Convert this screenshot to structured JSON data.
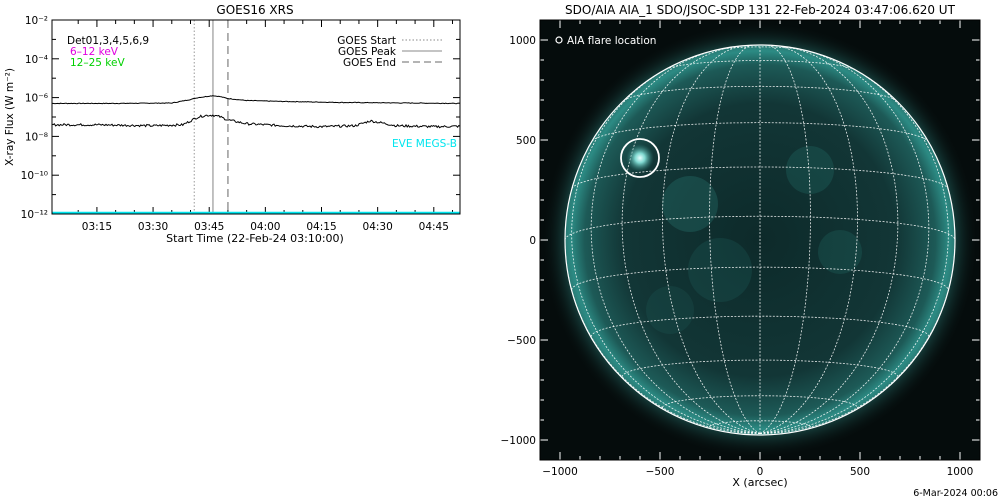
{
  "chart_data": [
    {
      "type": "line",
      "title": "GOES16 XRS",
      "ylabel": "X-ray Flux (W m⁻²)",
      "xlabel": "Start Time (22-Feb-24 03:10:00)",
      "yscale": "log",
      "ylim": [
        1e-12,
        0.01
      ],
      "y_tick_labels": [
        "10⁻¹²",
        "10⁻¹⁰",
        "10⁻⁸",
        "10⁻⁶",
        "10⁻⁴",
        "10⁻²"
      ],
      "xlim_minutes_after_0310": [
        -7,
        102
      ],
      "x_tick_labels": [
        "03:15",
        "03:30",
        "03:45",
        "04:00",
        "04:15",
        "04:30",
        "04:45"
      ],
      "det_label": "Det01,3,4,5,6,9",
      "channel_labels": [
        {
          "text": "6–12 keV",
          "color": "#e000e0"
        },
        {
          "text": "12–25 keV",
          "color": "#00d000"
        }
      ],
      "instrument_label": "EVE MEGS-B",
      "instrument_color": "#00e5ee",
      "legend": {
        "position": "top-right",
        "entries": [
          {
            "label": "GOES Start",
            "style": "dotted"
          },
          {
            "label": "GOES Peak",
            "style": "solid"
          },
          {
            "label": "GOES End",
            "style": "dashed"
          }
        ]
      },
      "event_lines": {
        "start": "03:41",
        "peak": "03:46",
        "end": "03:50"
      },
      "series": [
        {
          "time": [
            "03:03",
            "03:20",
            "03:35",
            "03:40",
            "03:42",
            "03:44",
            "03:46",
            "03:48",
            "03:50",
            "03:55",
            "04:05",
            "04:20",
            "04:52"
          ],
          "log_flux": [
            -6.3,
            -6.3,
            -6.28,
            -6.1,
            -6.0,
            -5.95,
            -5.9,
            -5.95,
            -6.05,
            -6.15,
            -6.2,
            -6.25,
            -6.3
          ]
        },
        {
          "time": [
            "03:03",
            "03:15",
            "03:30",
            "03:38",
            "03:40",
            "03:42",
            "03:44",
            "03:46",
            "03:48",
            "03:50",
            "03:55",
            "04:05",
            "04:15",
            "04:24",
            "04:28",
            "04:31",
            "04:35",
            "04:45",
            "04:52"
          ],
          "log_flux": [
            -7.4,
            -7.4,
            -7.45,
            -7.4,
            -7.2,
            -7.0,
            -6.92,
            -6.9,
            -7.0,
            -7.15,
            -7.35,
            -7.45,
            -7.5,
            -7.45,
            -7.2,
            -7.3,
            -7.45,
            -7.5,
            -7.48
          ]
        },
        {
          "time": [
            "03:03",
            "04:52"
          ],
          "log_flux": [
            -12.0,
            -12.0
          ]
        }
      ]
    },
    {
      "type": "image",
      "title": "SDO/AIA AIA_1 SDO/JSOC-SDP 131 22-Feb-2024 03:47:06.620 UT",
      "xlabel": "X (arcsec)",
      "xlim": [
        -1100,
        1100
      ],
      "ylim": [
        -1100,
        1100
      ],
      "x_tick_labels": [
        "−1000",
        "−500",
        "0",
        "500",
        "1000"
      ],
      "y_tick_labels": [
        "−1000",
        "−500",
        "0",
        "500",
        "1000"
      ],
      "legend_label": "AIA flare location",
      "flare_location_arcsec": [
        -600,
        410
      ],
      "solar_radius_arcsec": 975
    }
  ],
  "footer": {
    "timestamp": "6-Mar-2024 00:06"
  }
}
